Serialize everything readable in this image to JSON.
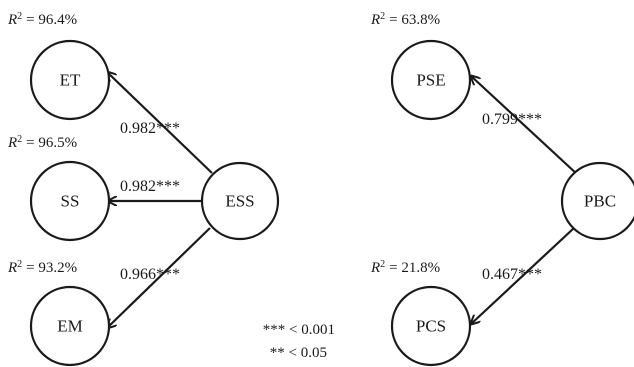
{
  "nodes": {
    "et": "ET",
    "ss": "SS",
    "em": "EM",
    "ess": "ESS",
    "pse": "PSE",
    "pbc": "PBC",
    "pcs": "PCS"
  },
  "r_squared": {
    "prefix": "R",
    "exponent": "2",
    "et": "= 96.4%",
    "ss": "= 96.5%",
    "em": "= 93.2%",
    "pse": "= 63.8%",
    "pcs": "= 21.8%"
  },
  "paths": {
    "ess_et": "0.982***",
    "ess_ss": "0.982***",
    "ess_em": "0.966***",
    "pbc_pse": "0.799***",
    "pbc_pcs": "0.467***"
  },
  "legend": {
    "line1": "*** < 0.001",
    "line2": "** < 0.05"
  }
}
